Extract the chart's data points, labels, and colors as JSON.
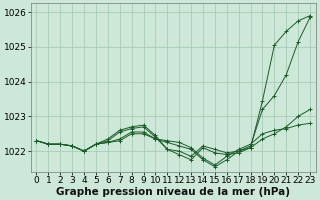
{
  "bg_color": "#cde8d8",
  "grid_color": "#a0c8b0",
  "line_color": "#1a5c28",
  "marker_color": "#1a5c28",
  "title": "Graphe pression niveau de la mer (hPa)",
  "xlabel_fontsize": 6.5,
  "ylabel_fontsize": 6.5,
  "title_fontsize": 7.5,
  "x": [
    0,
    1,
    2,
    3,
    4,
    5,
    6,
    7,
    8,
    9,
    10,
    11,
    12,
    13,
    14,
    15,
    16,
    17,
    18,
    19,
    20,
    21,
    22,
    23
  ],
  "series": [
    [
      1022.3,
      1022.2,
      1022.2,
      1022.15,
      1022.0,
      1022.2,
      1022.25,
      1022.3,
      1022.5,
      1022.5,
      1022.35,
      1022.3,
      1022.25,
      1022.1,
      1021.8,
      1021.6,
      1021.85,
      1022.05,
      1022.2,
      1022.5,
      1022.6,
      1022.65,
      1022.75,
      1022.8
    ],
    [
      1022.3,
      1022.2,
      1022.2,
      1022.15,
      1022.0,
      1022.2,
      1022.35,
      1022.6,
      1022.7,
      1022.75,
      1022.45,
      1022.05,
      1021.9,
      1021.75,
      1022.1,
      1021.95,
      1021.9,
      1021.95,
      1022.1,
      1022.35,
      1022.5,
      1022.7,
      1023.0,
      1023.2
    ],
    [
      1022.3,
      1022.2,
      1022.2,
      1022.15,
      1022.0,
      1022.2,
      1022.3,
      1022.55,
      1022.65,
      1022.7,
      1022.4,
      1022.05,
      1022.0,
      1021.85,
      1022.15,
      1022.05,
      1021.95,
      1022.0,
      1022.15,
      1023.2,
      1023.6,
      1024.2,
      1025.15,
      1025.85
    ],
    [
      1022.3,
      1022.2,
      1022.2,
      1022.15,
      1022.0,
      1022.2,
      1022.25,
      1022.35,
      1022.55,
      1022.55,
      1022.35,
      1022.25,
      1022.15,
      1022.05,
      1021.75,
      1021.55,
      1021.75,
      1022.0,
      1022.1,
      1023.45,
      1025.05,
      1025.45,
      1025.75,
      1025.9
    ]
  ],
  "ylim": [
    1021.4,
    1026.25
  ],
  "yticks": [
    1022,
    1023,
    1024,
    1025,
    1026
  ],
  "xlim": [
    -0.5,
    23.5
  ],
  "xticks": [
    0,
    1,
    2,
    3,
    4,
    5,
    6,
    7,
    8,
    9,
    10,
    11,
    12,
    13,
    14,
    15,
    16,
    17,
    18,
    19,
    20,
    21,
    22,
    23
  ]
}
